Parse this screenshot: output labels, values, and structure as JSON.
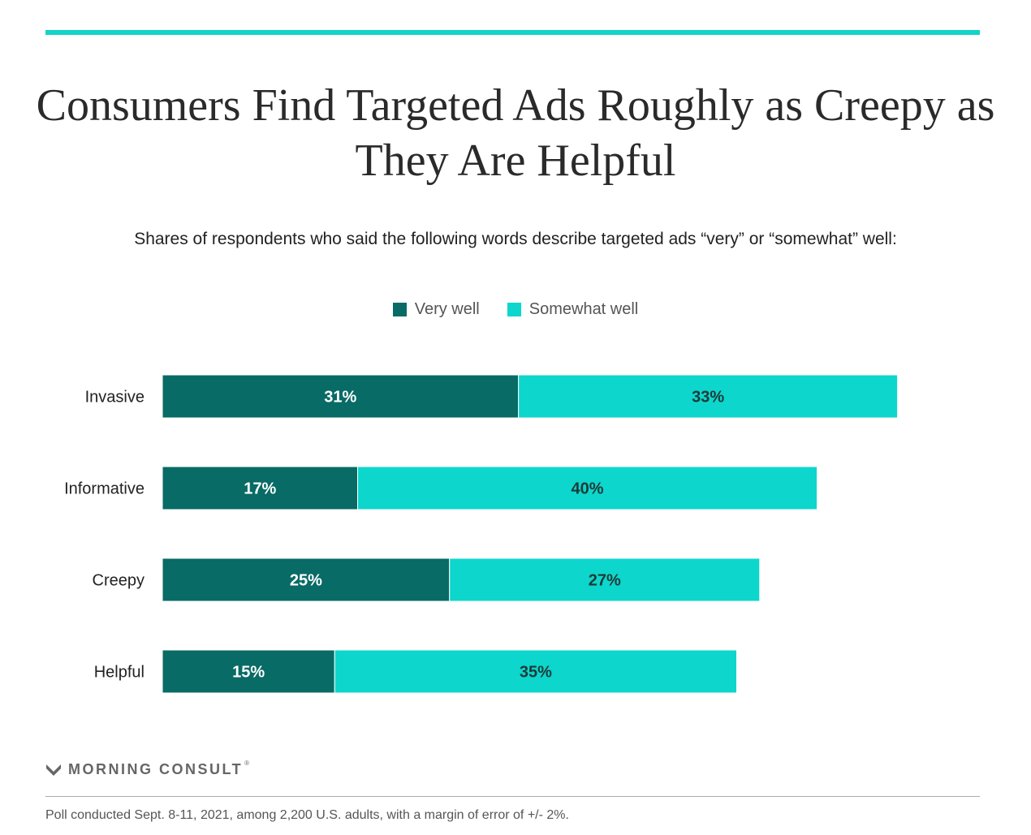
{
  "colors": {
    "accent": "#14d3c9",
    "very_well": "#086b65",
    "somewhat_well": "#0dd6cc",
    "label_light": "#ffffff",
    "label_dark": "#1d3a38"
  },
  "header": {
    "title": "Consumers Find Targeted Ads Roughly as Creepy as They Are Helpful",
    "subtitle": "Shares of respondents who said the following words describe targeted ads “very” or “somewhat” well:"
  },
  "chart_data": {
    "type": "bar",
    "orientation": "horizontal",
    "stacked": true,
    "title": "Consumers Find Targeted Ads Roughly as Creepy as They Are Helpful",
    "subtitle": "Shares of respondents who said the following words describe targeted ads “very” or “somewhat” well:",
    "categories": [
      "Invasive",
      "Informative",
      "Creepy",
      "Helpful"
    ],
    "series": [
      {
        "name": "Very well",
        "values": [
          31,
          17,
          25,
          15
        ],
        "labels": [
          "31%",
          "17%",
          "25%",
          "15%"
        ]
      },
      {
        "name": "Somewhat well",
        "values": [
          33,
          40,
          27,
          35
        ],
        "labels": [
          "33%",
          "40%",
          "27%",
          "35%"
        ]
      }
    ],
    "xlim": [
      0,
      64
    ],
    "grid": false,
    "legend_position": "top-center"
  },
  "footer": {
    "brand": "MORNING CONSULT",
    "brand_mark": "®",
    "brand_icon": "morning-consult-logo-icon",
    "note": "Poll conducted Sept. 8-11, 2021, among 2,200 U.S. adults, with a margin of error of +/- 2%."
  }
}
